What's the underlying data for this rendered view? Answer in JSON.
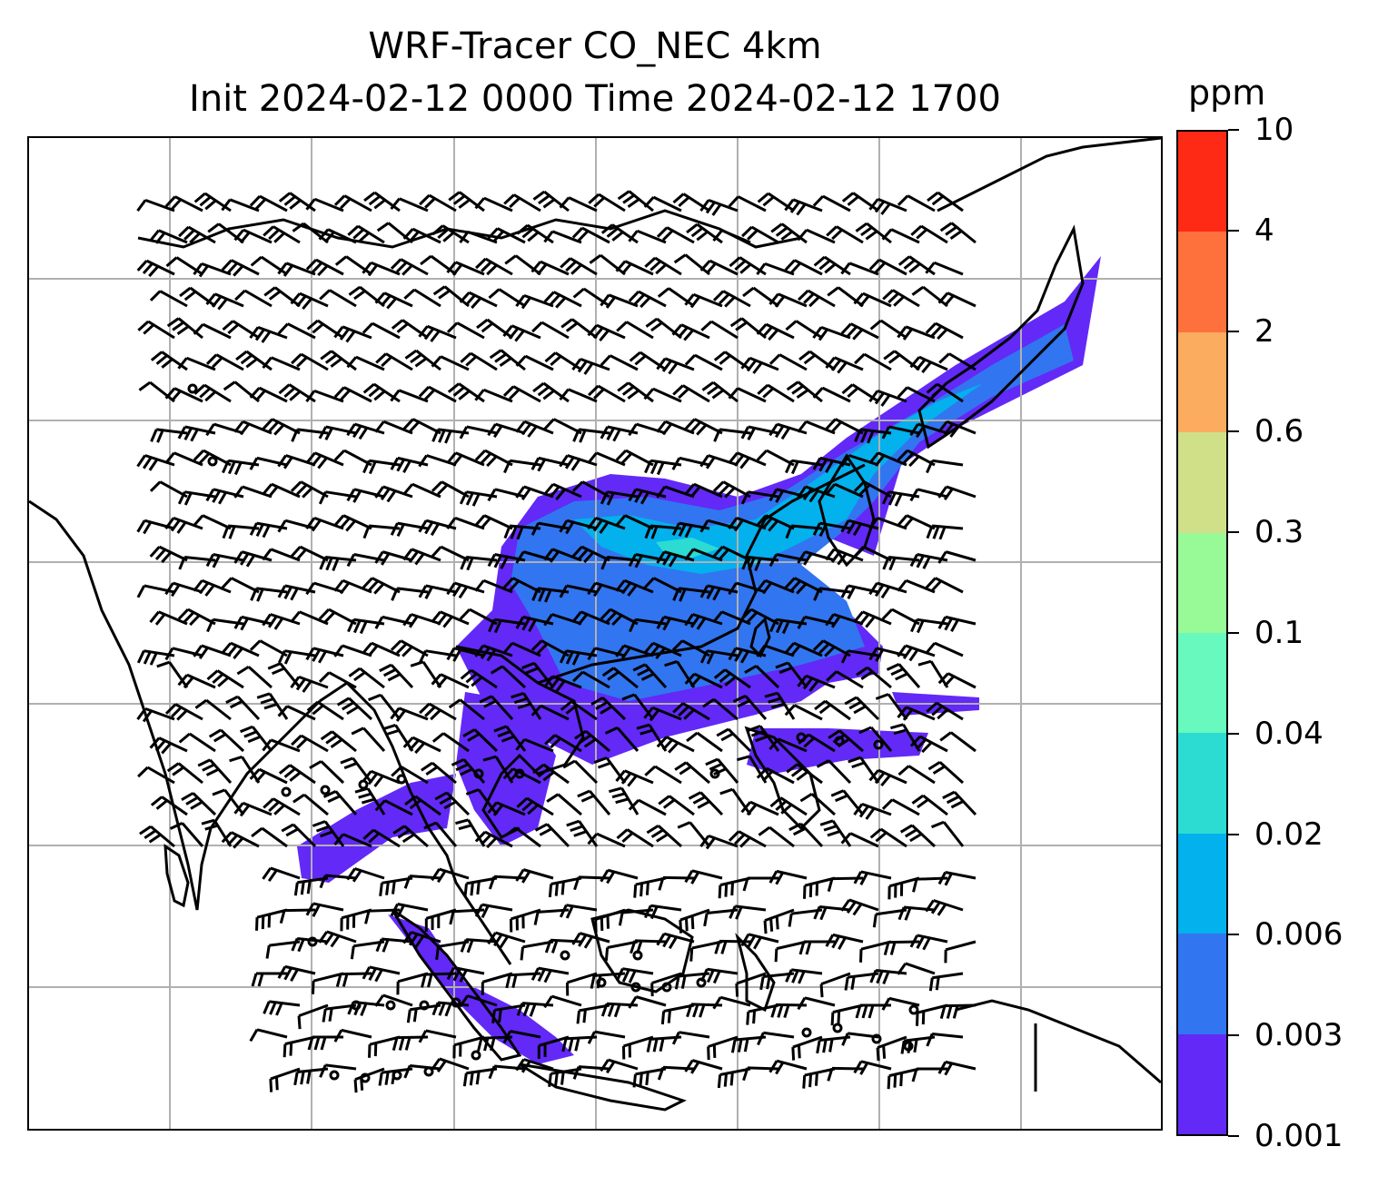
{
  "title_line1": "WRF-Tracer CO_NEC 4km",
  "title_line2": "Init 2024-02-12 0000 Time 2024-02-12 1700",
  "colorbar": {
    "unit": "ppm",
    "ticks": [
      "0.001",
      "0.003",
      "0.006",
      "0.02",
      "0.04",
      "0.1",
      "0.3",
      "0.6",
      "2",
      "4",
      "10"
    ],
    "colors": [
      "#6229f7",
      "#3275f0",
      "#03b1ed",
      "#2cdbd2",
      "#67f9bd",
      "#98f997",
      "#cfe088",
      "#fcac5e",
      "#fe713c",
      "#fe2a15"
    ]
  },
  "map": {
    "variable": "CO_NEC tracer",
    "overlay": "wind barbs",
    "gridlines": true,
    "plume_levels_visible": [
      "0.001",
      "0.003",
      "0.006",
      "0.02"
    ]
  }
}
